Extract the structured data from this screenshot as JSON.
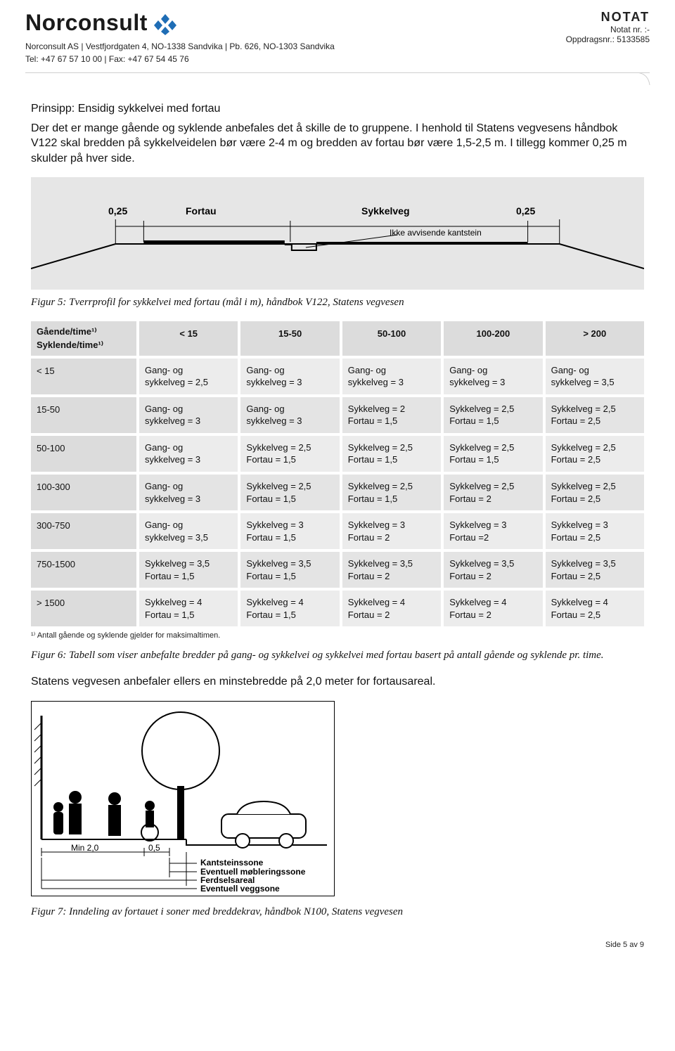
{
  "header": {
    "brand": "Norconsult",
    "logo_color": "#1f6db5",
    "address_line1": "Norconsult AS | Vestfjordgaten 4, NO-1338 Sandvika | Pb. 626, NO-1303 Sandvika",
    "address_line2": "Tel: +47 67 57 10 00 | Fax: +47 67 54 45 76",
    "doc_type": "NOTAT",
    "notat_nr_label": "Notat nr. :-",
    "oppdragsnr_label": "Oppdragsnr.: 5133585"
  },
  "body": {
    "heading": "Prinsipp: Ensidig sykkelvei med fortau",
    "p1": "Der det er mange gående og syklende anbefales det å skille de to gruppene. I henhold til Statens vegvesens håndbok V122 skal bredden på sykkelveidelen bør være 2-4 m og bredden av fortau bør være 1,5-2,5 m. I tillegg kommer 0,25 m skulder på hver side.",
    "fig5": {
      "bg": "#e6e6e6",
      "left_shoulder": "0,25",
      "fortau": "Fortau",
      "sykkelveg": "Sykkelveg",
      "right_shoulder": "0,25",
      "kantstein": "Ikke avvisende kantstein"
    },
    "caption5": "Figur 5: Tverrprofil for sykkelvei med fortau (mål i m), håndbok V122, Statens vegvesen",
    "table": {
      "corner_line1": "Gående/time¹⁾",
      "corner_line2": "Syklende/time¹⁾",
      "col_headers": [
        "< 15",
        "15-50",
        "50-100",
        "100-200",
        "> 200"
      ],
      "row_headers": [
        "< 15",
        "15-50",
        "50-100",
        "100-300",
        "300-750",
        "750-1500",
        "> 1500"
      ],
      "rows": [
        [
          "Gang- og\nsykkelveg = 2,5",
          "Gang- og\nsykkelveg = 3",
          "Gang- og\nsykkelveg = 3",
          "Gang- og\nsykkelveg = 3",
          "Gang- og\nsykkelveg = 3,5"
        ],
        [
          "Gang- og\nsykkelveg = 3",
          "Gang- og\nsykkelveg = 3",
          "Sykkelveg = 2\nFortau = 1,5",
          "Sykkelveg = 2,5\nFortau = 1,5",
          "Sykkelveg = 2,5\nFortau = 2,5"
        ],
        [
          "Gang- og\nsykkelveg = 3",
          "Sykkelveg = 2,5\nFortau = 1,5",
          "Sykkelveg = 2,5\nFortau = 1,5",
          "Sykkelveg = 2,5\nFortau = 1,5",
          "Sykkelveg = 2,5\nFortau = 2,5"
        ],
        [
          "Gang- og\nsykkelveg = 3",
          "Sykkelveg = 2,5\nFortau = 1,5",
          "Sykkelveg = 2,5\nFortau = 1,5",
          "Sykkelveg = 2,5\nFortau = 2",
          "Sykkelveg = 2,5\nFortau = 2,5"
        ],
        [
          "Gang- og\nsykkelveg = 3,5",
          "Sykkelveg = 3\nFortau = 1,5",
          "Sykkelveg = 3\nFortau = 2",
          "Sykkelveg = 3\nFortau =2",
          "Sykkelveg = 3\nFortau = 2,5"
        ],
        [
          "Sykkelveg = 3,5\nFortau = 1,5",
          "Sykkelveg = 3,5\nFortau = 1,5",
          "Sykkelveg = 3,5\nFortau = 2",
          "Sykkelveg = 3,5\nFortau = 2",
          "Sykkelveg = 3,5\nFortau = 2,5"
        ],
        [
          "Sykkelveg = 4\nFortau = 1,5",
          "Sykkelveg = 4\nFortau = 1,5",
          "Sykkelveg = 4\nFortau = 2",
          "Sykkelveg = 4\nFortau = 2",
          "Sykkelveg = 4\nFortau = 2,5"
        ]
      ],
      "footnote": "¹⁾ Antall gående og syklende gjelder for maksimaltimen."
    },
    "caption6": "Figur 6: Tabell som viser anbefalte bredder på gang- og sykkelvei og sykkelvei med fortau basert på antall gående og syklende pr. time.",
    "p2": "Statens vegvesen anbefaler ellers en minstebredde på 2,0 meter for fortausareal.",
    "fig7": {
      "min": "Min 2,0",
      "half": "0,5",
      "legend": [
        "Kantsteinssone",
        "Eventuell møbleringssone",
        "Ferdselsareal",
        "Eventuell veggsone"
      ]
    },
    "caption7": "Figur 7: Inndeling av fortauet i soner med breddekrav, håndbok N100, Statens vegvesen"
  },
  "footer": {
    "page": "Side 5 av 9"
  }
}
